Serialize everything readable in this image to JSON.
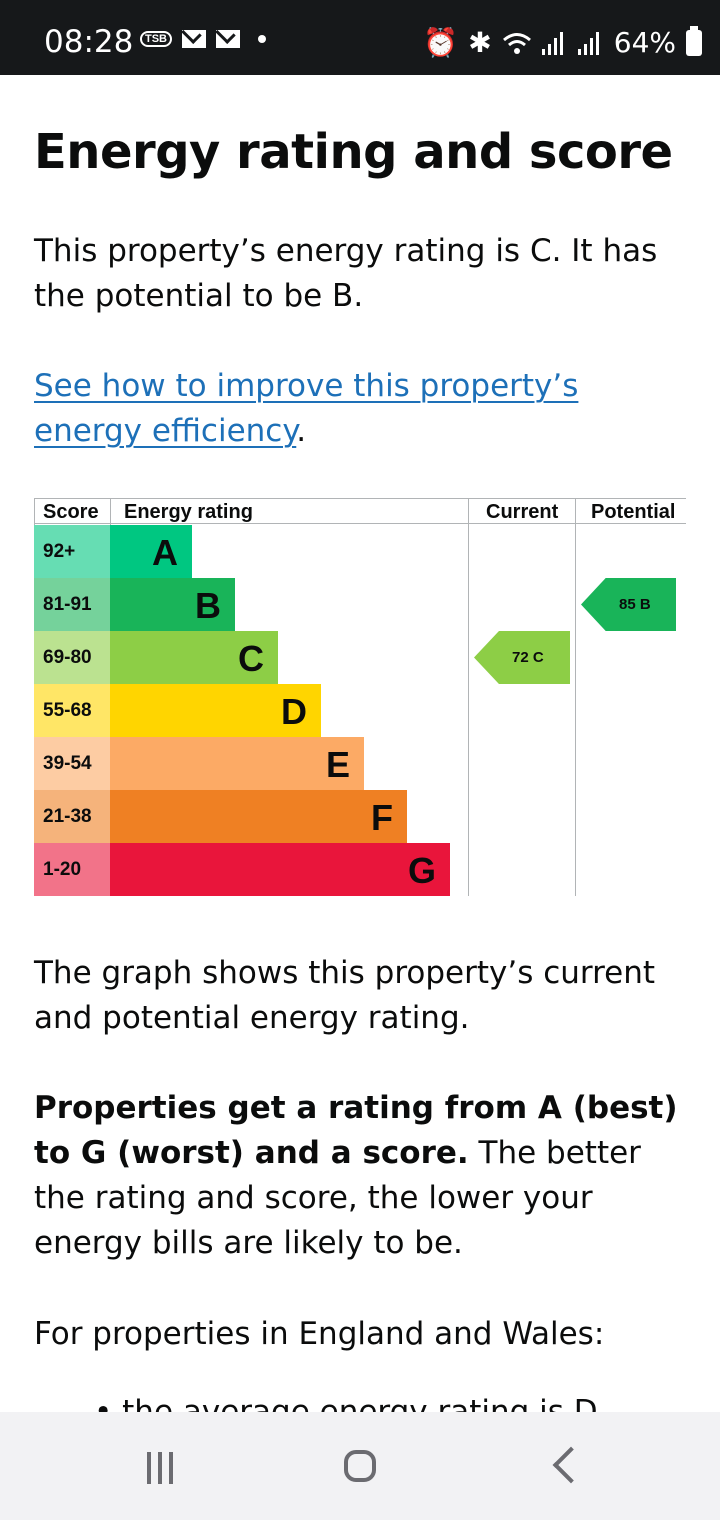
{
  "status_bar": {
    "time": "08:28",
    "pill_text": "TSB",
    "battery": "64%"
  },
  "page": {
    "title": "Energy rating and score",
    "intro": "This property’s energy rating is C. It has the potential to be B.",
    "improve_link": "See how to improve this property’s energy efficiency",
    "improve_suffix": ".",
    "graph_text": "The graph shows this property’s current and potential energy rating.",
    "ratings_bold": "Properties get a rating from A (best) to G (worst) and a score.",
    "ratings_rest": " The better the rating and score, the lower your energy bills are likely to be.",
    "england_wales": "For properties in England and Wales:",
    "cut_bullet": "• the average energy rating is D"
  },
  "chart_data": {
    "type": "table",
    "headers": {
      "score": "Score",
      "energy_rating": "Energy rating",
      "current": "Current",
      "potential": "Potential"
    },
    "bands": [
      {
        "score": "92+",
        "rating": "A",
        "color": "#00c781",
        "score_bg": "#66ddb3"
      },
      {
        "score": "81-91",
        "rating": "B",
        "color": "#19b459",
        "score_bg": "#75d29b"
      },
      {
        "score": "69-80",
        "rating": "C",
        "color": "#8dce46",
        "score_bg": "#bbe290"
      },
      {
        "score": "55-68",
        "rating": "D",
        "color": "#ffd500",
        "score_bg": "#ffe666"
      },
      {
        "score": "39-54",
        "rating": "E",
        "color": "#fcaa65",
        "score_bg": "#fdcca3"
      },
      {
        "score": "21-38",
        "rating": "F",
        "color": "#ef8023",
        "score_bg": "#f5b37b"
      },
      {
        "score": "1-20",
        "rating": "G",
        "color": "#e9153b",
        "score_bg": "#f27389"
      }
    ],
    "current": {
      "label": "72 C",
      "score": 72,
      "band": "C"
    },
    "potential": {
      "label": "85 B",
      "score": 85,
      "band": "B"
    }
  },
  "colors": {
    "link": "#1d70b8",
    "text": "#0b0c0c"
  }
}
